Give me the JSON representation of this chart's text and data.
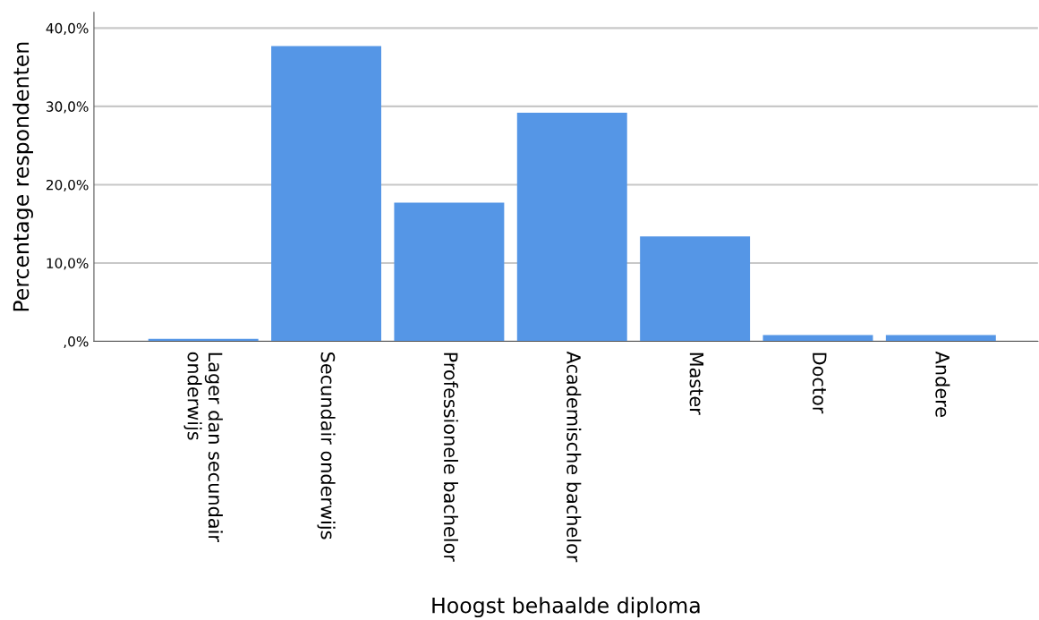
{
  "chart_data": {
    "type": "bar",
    "xlabel": "Hoogst behaalde diploma",
    "ylabel": "Percentage respondenten",
    "categories": [
      "Lager dan secundair\nonderwijs",
      "Secundair onderwijs",
      "Professionele bachelor",
      "Academische bachelor",
      "Master",
      "Doctor",
      "Andere"
    ],
    "values": [
      0.3,
      37.7,
      17.7,
      29.2,
      13.4,
      0.8,
      0.8
    ],
    "color": "#5596e6",
    "ylim": [
      0,
      42
    ],
    "yticks": [
      {
        "value": 0,
        "label": ",0%"
      },
      {
        "value": 10,
        "label": "10,0%"
      },
      {
        "value": 20,
        "label": "20,0%"
      },
      {
        "value": 30,
        "label": "30,0%"
      },
      {
        "value": 40,
        "label": "40,0%"
      }
    ],
    "grid": "y"
  }
}
